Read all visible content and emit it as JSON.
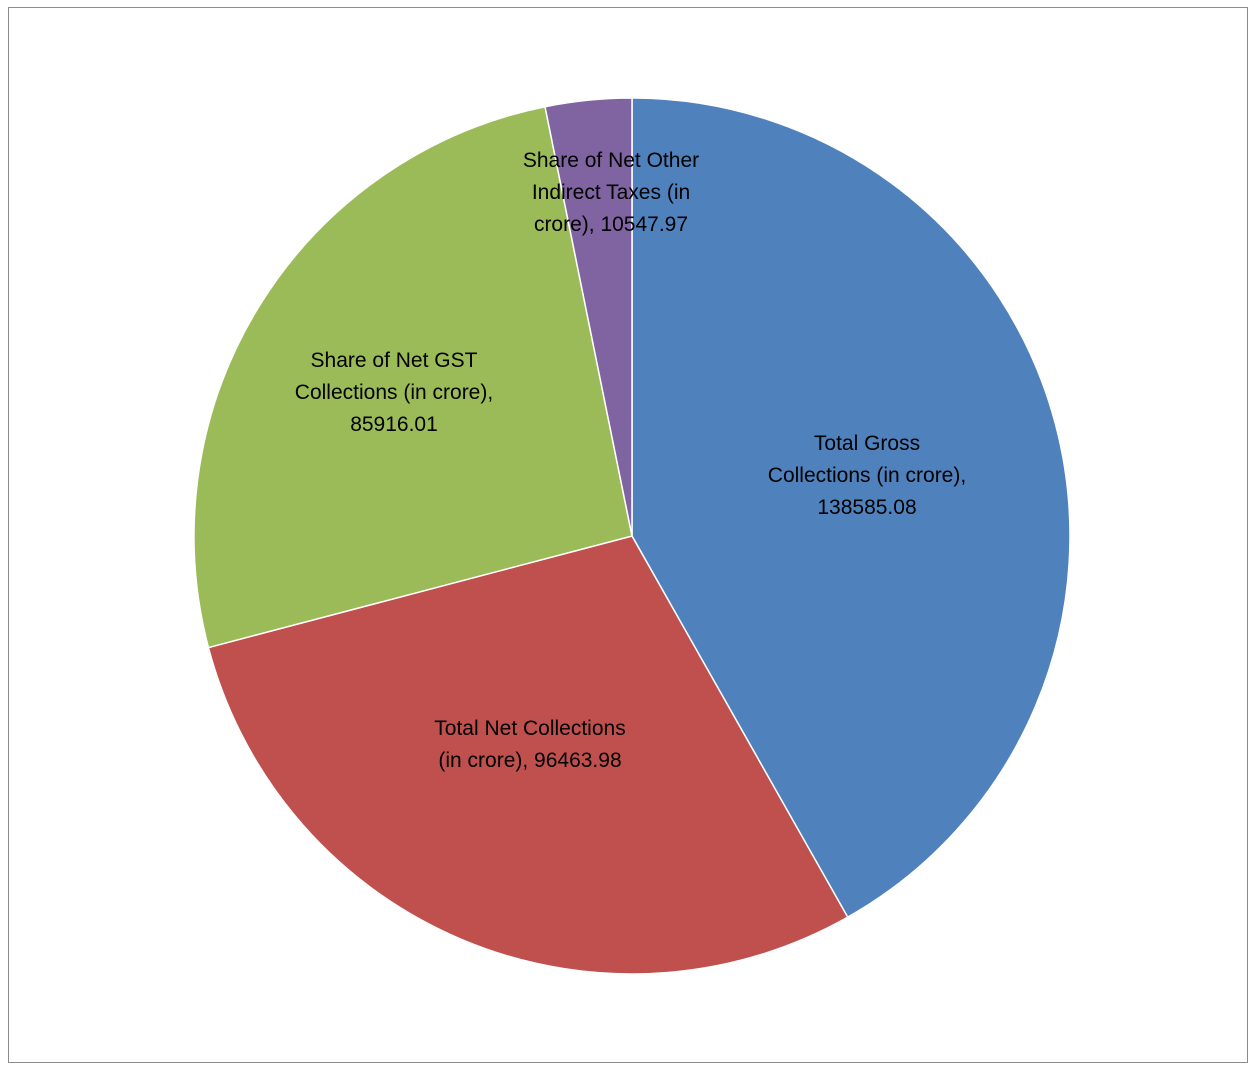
{
  "chart_data": {
    "type": "pie",
    "title": "",
    "slices": [
      {
        "name": "Total Gross Collections (in crore)",
        "value": 138585.08,
        "color": "#4F81BD",
        "label_lines": [
          "Total Gross",
          "Collections (in crore),",
          "138585.08"
        ]
      },
      {
        "name": "Total Net Collections (in crore)",
        "value": 96463.98,
        "color": "#C0504D",
        "label_lines": [
          "Total Net Collections",
          "(in crore), 96463.98"
        ]
      },
      {
        "name": "Share of Net GST Collections (in crore)",
        "value": 85916.01,
        "color": "#9BBB59",
        "label_lines": [
          "Share of Net GST",
          "Collections (in crore),",
          "85916.01"
        ]
      },
      {
        "name": "Share of Net Other Indirect Taxes (in crore)",
        "value": 10547.97,
        "color": "#8064A2",
        "label_lines": [
          "Share of Net Other",
          "Indirect Taxes (in",
          "crore), 10547.97"
        ]
      }
    ],
    "start_angle": "12 o'clock",
    "direction": "clockwise",
    "legend": "none",
    "data_labels": "inside"
  }
}
